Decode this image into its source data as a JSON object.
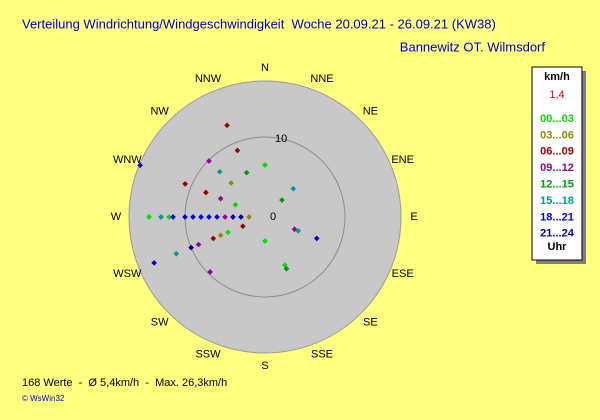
{
  "chart_data": {
    "type": "wind-rose",
    "title": "Verteilung Windrichtung/Windgeschwindigkeit  Woche 20.09.21 - 26.09.21 (KW38)",
    "subtitle": "Bannewitz OT. Wilmsdorf",
    "directions": [
      "N",
      "NNE",
      "NE",
      "ENE",
      "E",
      "ESE",
      "SE",
      "SSE",
      "S",
      "SSW",
      "SW",
      "WSW",
      "W",
      "WNW",
      "NW",
      "NNW"
    ],
    "rlim": [
      0,
      17
    ],
    "rticks": [
      0,
      10
    ],
    "legend_title": "km/h",
    "calm": "1,4",
    "legend_footer": "Uhr",
    "series": [
      {
        "name": "00...03",
        "color": "#00dd00",
        "direction": [
          270,
          270,
          0,
          157.5,
          292.5,
          247.5,
          180
        ],
        "values": [
          14.5,
          12,
          6.5,
          6.5,
          4,
          5,
          3
        ]
      },
      {
        "name": "03...06",
        "color": "#998800",
        "direction": [
          247.5,
          315,
          270
        ],
        "values": [
          6,
          6,
          2
        ]
      },
      {
        "name": "06...09",
        "color": "#990000",
        "direction": [
          292.5,
          292.5,
          337.5,
          337.5,
          247.5,
          247.5
        ],
        "values": [
          10.8,
          8,
          12.4,
          9,
          7,
          3
        ]
      },
      {
        "name": "09...12",
        "color": "#990099",
        "direction": [
          315,
          247.5,
          225,
          292.5,
          112.5,
          270
        ],
        "values": [
          9.9,
          9,
          9.7,
          6,
          4,
          5
        ]
      },
      {
        "name": "12...15",
        "color": "#009900",
        "direction": [
          337.5,
          157.5,
          45
        ],
        "values": [
          6,
          7,
          3
        ]
      },
      {
        "name": "15...18",
        "color": "#009999",
        "direction": [
          270,
          247.5,
          315,
          45,
          112.5
        ],
        "values": [
          13,
          12,
          8,
          5,
          4.5
        ]
      },
      {
        "name": "18...21",
        "color": "#0000dd",
        "direction": [
          292.5,
          270,
          270,
          270,
          270,
          270,
          270,
          247.5,
          112.5
        ],
        "values": [
          16.9,
          11.5,
          10,
          9,
          8,
          7,
          6,
          15,
          7
        ]
      },
      {
        "name": "21...24",
        "color": "#000099",
        "direction": [
          270,
          270,
          247.5
        ],
        "values": [
          4,
          3,
          10
        ]
      }
    ],
    "note": "168 Werte  -  Ø 5,4km/h  -  Max. 26,3km/h",
    "credit": "© WsWin32"
  }
}
